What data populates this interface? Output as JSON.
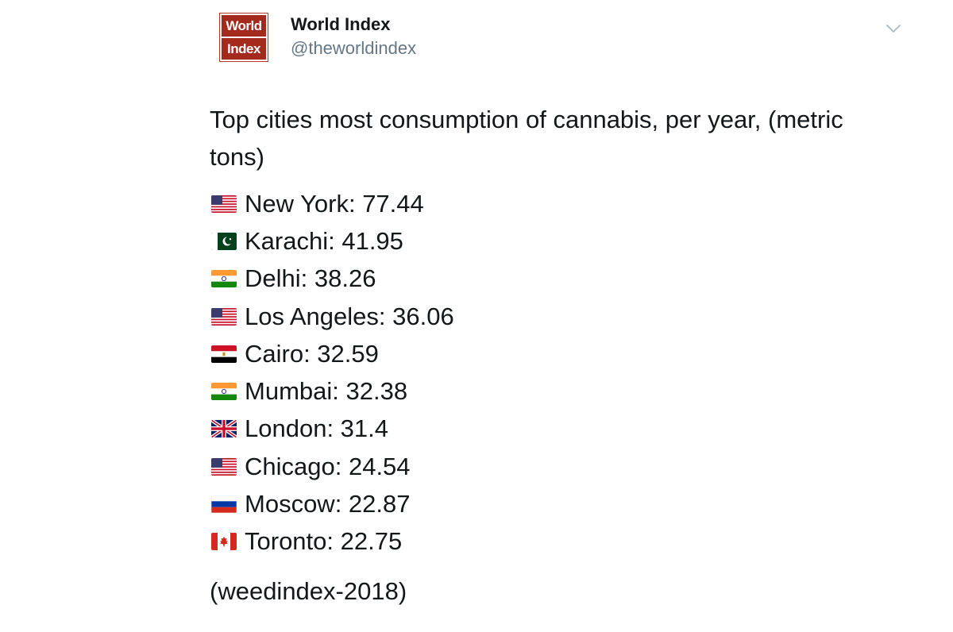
{
  "header": {
    "logo_line1": "World",
    "logo_line2": "Index",
    "display_name": "World Index",
    "handle": "@theworldindex"
  },
  "tweet": {
    "text": "Top cities most consumption of cannabis, per year, (metric tons)",
    "items": [
      {
        "flag": "us-flag-icon",
        "text": "New York: 77.44"
      },
      {
        "flag": "pk-flag-icon",
        "text": "Karachi: 41.95"
      },
      {
        "flag": "in-flag-icon",
        "text": "Delhi: 38.26"
      },
      {
        "flag": "us-flag-icon",
        "text": "Los Angeles: 36.06"
      },
      {
        "flag": "eg-flag-icon",
        "text": "Cairo: 32.59"
      },
      {
        "flag": "in-flag-icon",
        "text": "Mumbai: 32.38"
      },
      {
        "flag": "gb-flag-icon",
        "text": "London: 31.4"
      },
      {
        "flag": "us-flag-icon",
        "text": "Chicago: 24.54"
      },
      {
        "flag": "ru-flag-icon",
        "text": "Moscow: 22.87"
      },
      {
        "flag": "ca-flag-icon",
        "text": "Toronto: 22.75"
      }
    ],
    "source": "(weedindex-2018)"
  },
  "colors": {
    "logo_red": "#a52a1e",
    "handle_gray": "#657786",
    "text": "#14171a"
  }
}
